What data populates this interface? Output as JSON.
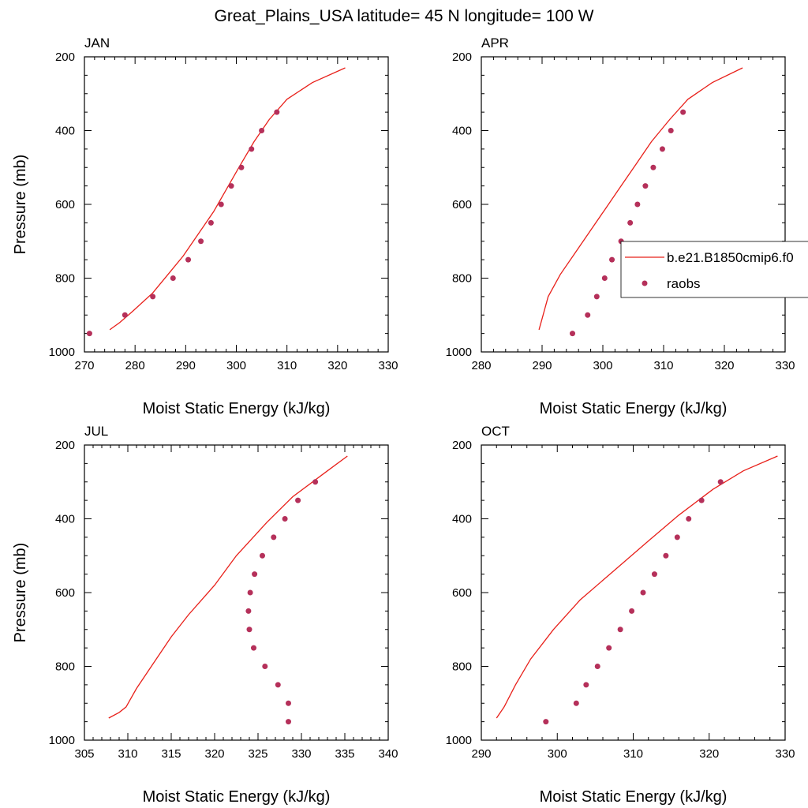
{
  "figure_title": "Great_Plains_USA  latitude= 45 N longitude= 100 W",
  "colors": {
    "model": "#e8201a",
    "obs": "#b5305a"
  },
  "legend": {
    "model_label": "b.e21.B1850cmip6.f0",
    "obs_label": "raobs"
  },
  "chart_data": [
    {
      "type": "scatter",
      "title": "JAN",
      "xlabel": "Moist Static Energy (kJ/kg)",
      "ylabel": "Pressure (mb)",
      "xlim": [
        270,
        330
      ],
      "xticks": [
        270,
        280,
        290,
        300,
        310,
        320,
        330
      ],
      "ylim": [
        200,
        1000
      ],
      "yticks": [
        200,
        400,
        600,
        800,
        1000
      ],
      "y_reversed": true,
      "series": [
        {
          "name": "b.e21.B1850cmip6.f0",
          "kind": "line",
          "x": [
            321.5,
            315,
            310,
            306.5,
            303.5,
            300.5,
            298,
            295.5,
            292.5,
            289.5,
            286.5,
            283.5,
            279.5,
            277,
            275
          ],
          "y": [
            230,
            270,
            315,
            370,
            430,
            500,
            560,
            620,
            680,
            740,
            790,
            840,
            890,
            920,
            940
          ]
        },
        {
          "name": "raobs",
          "kind": "points",
          "x": [
            271,
            278,
            283.5,
            287.5,
            290.5,
            293,
            295,
            297,
            299,
            301,
            303,
            305,
            308
          ],
          "y": [
            950,
            900,
            850,
            800,
            750,
            700,
            650,
            600,
            550,
            500,
            450,
            400,
            350
          ]
        }
      ]
    },
    {
      "type": "scatter",
      "title": "APR",
      "xlabel": "Moist Static Energy (kJ/kg)",
      "ylabel": "",
      "xlim": [
        280,
        330
      ],
      "xticks": [
        280,
        290,
        300,
        310,
        320,
        330
      ],
      "ylim": [
        200,
        1000
      ],
      "yticks": [
        200,
        400,
        600,
        800,
        1000
      ],
      "y_reversed": true,
      "series": [
        {
          "name": "b.e21.B1850cmip6.f0",
          "kind": "line",
          "x": [
            323,
            318,
            314,
            311,
            308,
            305.5,
            303,
            300.5,
            298,
            295.5,
            293,
            291,
            290,
            289.5
          ],
          "y": [
            230,
            270,
            315,
            370,
            430,
            490,
            550,
            610,
            670,
            730,
            790,
            850,
            910,
            940
          ]
        },
        {
          "name": "raobs",
          "kind": "points",
          "x": [
            295,
            297.5,
            299,
            300.3,
            301.5,
            303,
            304.5,
            305.7,
            307,
            308.3,
            309.8,
            311.2,
            313.2
          ],
          "y": [
            950,
            900,
            850,
            800,
            750,
            700,
            650,
            600,
            550,
            500,
            450,
            400,
            350
          ]
        }
      ]
    },
    {
      "type": "scatter",
      "title": "JUL",
      "xlabel": "Moist Static Energy (kJ/kg)",
      "ylabel": "Pressure (mb)",
      "xlim": [
        305,
        340
      ],
      "xticks": [
        305,
        310,
        315,
        320,
        325,
        330,
        335,
        340
      ],
      "ylim": [
        200,
        1000
      ],
      "yticks": [
        200,
        400,
        600,
        800,
        1000
      ],
      "y_reversed": true,
      "series": [
        {
          "name": "b.e21.B1850cmip6.f0",
          "kind": "line",
          "x": [
            335.3,
            333,
            329,
            326,
            322.5,
            320,
            317,
            315,
            313,
            311,
            309.8,
            309,
            307.8
          ],
          "y": [
            230,
            270,
            340,
            410,
            500,
            580,
            660,
            720,
            790,
            860,
            910,
            925,
            940
          ]
        },
        {
          "name": "raobs",
          "kind": "points",
          "x": [
            328.5,
            328.5,
            327.3,
            325.8,
            324.5,
            324,
            323.9,
            324.1,
            324.6,
            325.5,
            326.8,
            328.1,
            329.6,
            331.6
          ],
          "y": [
            950,
            900,
            850,
            800,
            750,
            700,
            650,
            600,
            550,
            500,
            450,
            400,
            350,
            300
          ]
        }
      ]
    },
    {
      "type": "scatter",
      "title": "OCT",
      "xlabel": "Moist Static Energy (kJ/kg)",
      "ylabel": "",
      "xlim": [
        290,
        330
      ],
      "xticks": [
        290,
        300,
        310,
        320,
        330
      ],
      "ylim": [
        200,
        1000
      ],
      "yticks": [
        200,
        400,
        600,
        800,
        1000
      ],
      "y_reversed": true,
      "series": [
        {
          "name": "b.e21.B1850cmip6.f0",
          "kind": "line",
          "x": [
            329,
            324.5,
            320.5,
            316,
            312,
            307.5,
            303,
            299.5,
            296.5,
            294.5,
            293,
            292
          ],
          "y": [
            230,
            270,
            320,
            390,
            460,
            540,
            620,
            700,
            780,
            850,
            910,
            940
          ]
        },
        {
          "name": "raobs",
          "kind": "points",
          "x": [
            298.5,
            302.5,
            303.8,
            305.3,
            306.8,
            308.3,
            309.8,
            311.3,
            312.8,
            314.3,
            315.8,
            317.3,
            319,
            321.5
          ],
          "y": [
            950,
            900,
            850,
            800,
            750,
            700,
            650,
            600,
            550,
            500,
            450,
            400,
            350,
            300
          ]
        }
      ]
    }
  ]
}
